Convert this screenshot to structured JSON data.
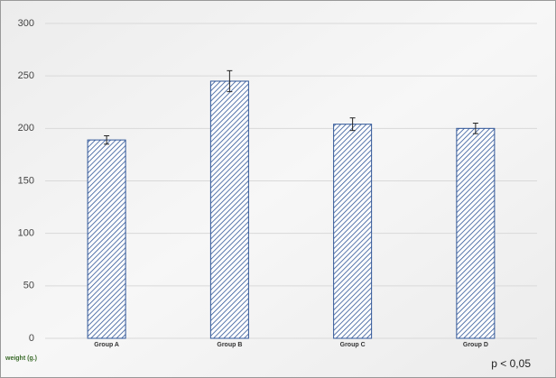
{
  "chart_data": {
    "type": "bar",
    "categories": [
      "Group A",
      "Group B",
      "Group C",
      "Group D"
    ],
    "values": [
      189,
      245,
      204,
      200
    ],
    "errors": [
      4,
      10,
      6,
      5
    ],
    "color": "#2f5597",
    "ylim": [
      0,
      300
    ],
    "yticks": [
      0,
      50,
      100,
      150,
      200,
      250,
      300
    ],
    "grid": true,
    "y_label": "weight (g.)",
    "annotation": "p < 0,05"
  }
}
